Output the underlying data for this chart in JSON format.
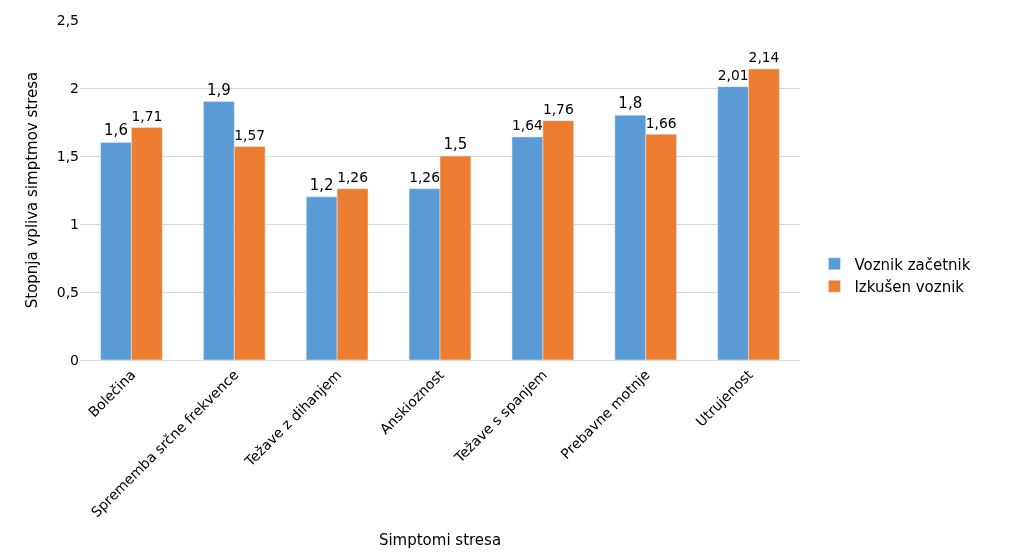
{
  "chart_data": {
    "type": "bar",
    "xlabel": "Simptomi stresa",
    "ylabel": "Stopnja vpliva simptmov stresa",
    "categories": [
      "Bolečina",
      "Sprememba srčne frekvence",
      "Težave z dihanjem",
      "Anskioznost",
      "Težave s spanjem",
      "Prebavne motnje",
      "Utrujenost"
    ],
    "series": [
      {
        "name": "Voznik začetnik",
        "color": "#5b9bd5",
        "values": [
          1.6,
          1.9,
          1.2,
          1.26,
          1.64,
          1.8,
          2.01
        ],
        "value_labels": [
          "1,6",
          "1,9",
          "1,2",
          "1,26",
          "1,64",
          "1,8",
          "2,01"
        ]
      },
      {
        "name": "Izkušen voznik",
        "color": "#ed7d31",
        "values": [
          1.71,
          1.57,
          1.26,
          1.5,
          1.76,
          1.66,
          2.14
        ],
        "value_labels": [
          "1,71",
          "1,57",
          "1,26",
          "1,5",
          "1,76",
          "1,66",
          "2,14"
        ]
      }
    ],
    "ylim": [
      0,
      2.5
    ],
    "yticks": [
      0,
      {
        "value": 0.5,
        "label": "0,5"
      },
      1,
      {
        "value": 1.5,
        "label": "1,5"
      },
      2,
      {
        "value": 2.5,
        "label": "2,5"
      }
    ],
    "grid": "y",
    "legend": "right"
  }
}
